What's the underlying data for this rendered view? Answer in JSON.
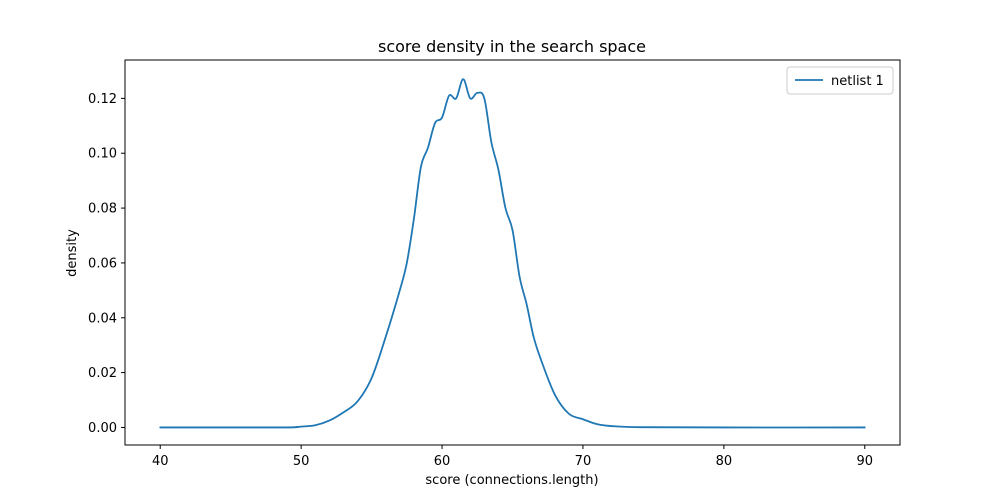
{
  "chart_data": {
    "type": "line",
    "title": "score density in the search space",
    "xlabel": "score (connections.length)",
    "ylabel": "density",
    "xlim": [
      37.5,
      92.5
    ],
    "ylim": [
      -0.0064,
      0.134
    ],
    "xticks": [
      40,
      50,
      60,
      70,
      80,
      90
    ],
    "yticks": [
      0.0,
      0.02,
      0.04,
      0.06,
      0.08,
      0.1,
      0.12
    ],
    "ytick_labels": [
      "0.00",
      "0.02",
      "0.04",
      "0.06",
      "0.08",
      "0.10",
      "0.12"
    ],
    "grid": false,
    "legend_position": "top-right",
    "series": [
      {
        "name": "netlist 1",
        "color": "#1f77b4",
        "x": [
          40,
          45,
          49,
          50,
          51,
          52,
          53,
          54,
          55,
          56,
          57,
          57.5,
          58,
          58.5,
          59,
          59.5,
          60,
          60.5,
          61,
          61.5,
          62,
          62.5,
          63,
          63.5,
          64,
          64.5,
          65,
          65.5,
          66,
          66.5,
          67,
          68,
          69,
          70,
          71,
          72,
          74,
          80,
          90
        ],
        "y": [
          0.0,
          0.0,
          0.0,
          0.0003,
          0.0008,
          0.0025,
          0.0055,
          0.0095,
          0.018,
          0.033,
          0.05,
          0.06,
          0.076,
          0.095,
          0.102,
          0.111,
          0.113,
          0.121,
          0.12,
          0.127,
          0.12,
          0.122,
          0.12,
          0.104,
          0.094,
          0.08,
          0.072,
          0.055,
          0.045,
          0.033,
          0.025,
          0.012,
          0.005,
          0.003,
          0.0012,
          0.0005,
          0.0001,
          0.0,
          0.0
        ]
      }
    ]
  }
}
